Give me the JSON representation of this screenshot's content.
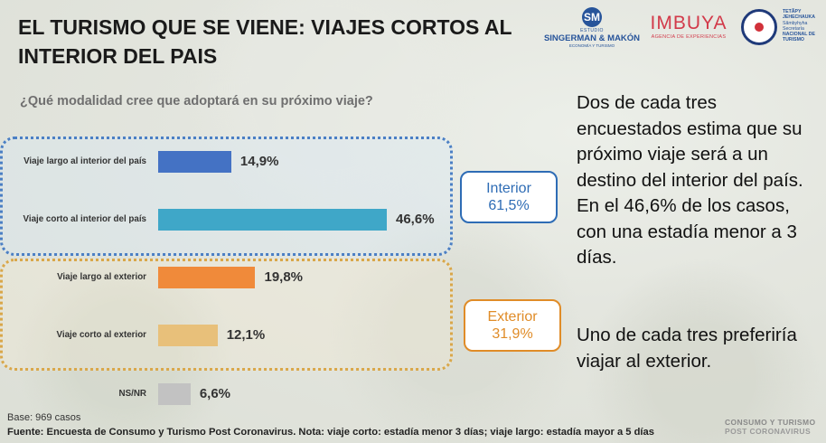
{
  "title": "EL TURISMO QUE SE VIENE: VIAJES CORTOS AL INTERIOR DEL PAIS",
  "question": "¿Qué modalidad cree que adoptará en su próximo viaje?",
  "logos": {
    "singerman": {
      "small": "ESTUDIO",
      "name": "SINGERMAN & MAKÓN",
      "sub": "ECONOMÍA Y TURISMO"
    },
    "imbuya": {
      "name": "IMBUYA",
      "sub": "AGENCIA DE EXPERIENCIAS"
    },
    "senatur": [
      "TETÃPY",
      "JEHECHAUKA",
      "Sãmbyhyha",
      "Secretaría",
      "NACIONAL DE",
      "TURISMO"
    ]
  },
  "chart_data": {
    "type": "bar",
    "orientation": "horizontal",
    "categories": [
      "Viaje largo al interior del país",
      "Viaje corto al interior del país",
      "Viaje largo al exterior",
      "Viaje corto al exterior",
      "NS/NR"
    ],
    "values": [
      14.9,
      46.6,
      19.8,
      12.1,
      6.6
    ],
    "value_labels": [
      "14,9%",
      "46,6%",
      "19,8%",
      "12,1%",
      "6,6%"
    ],
    "colors": [
      "#4472c4",
      "#3fa7c8",
      "#f08a3a",
      "#e8c07a",
      "#c2c2c2"
    ],
    "xlim": [
      0,
      50
    ],
    "groups": [
      {
        "label": "Interior",
        "value_label": "61,5%",
        "value": 61.5,
        "color": "#2e6cb5"
      },
      {
        "label": "Exterior",
        "value_label": "31,9%",
        "value": 31.9,
        "color": "#e08c28"
      }
    ]
  },
  "paragraphs": [
    "Dos de cada tres encuestados estima que su próximo viaje será a un destino del interior del país. En el 46,6% de los casos, con una estadía menor a 3 días.",
    "Uno de cada tres preferiría viajar al exterior."
  ],
  "base": "Base: 969 casos",
  "source": "Fuente: Encuesta de Consumo y Turismo Post Coronavirus. Nota: viaje corto: estadía menor 3 días; viaje largo: estadía mayor a 5 días",
  "brand": {
    "line1": "CONSUMO Y TURISMO",
    "line2": "POST CORONAVIRUS"
  }
}
